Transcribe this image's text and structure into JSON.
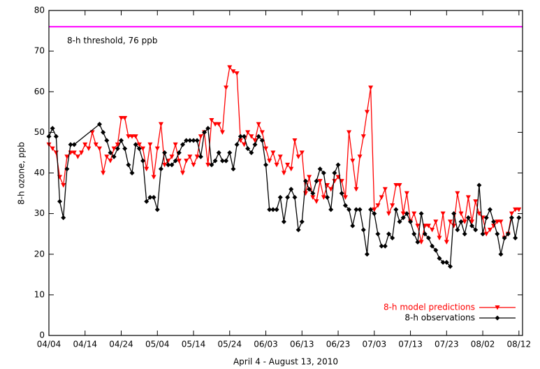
{
  "chart_data": {
    "type": "line",
    "xlabel": "April 4 - August 13, 2010",
    "ylabel": "8-h ozone,  ppb",
    "xlim": [
      0,
      131
    ],
    "ylim": [
      0,
      80
    ],
    "yticks": [
      0,
      10,
      20,
      30,
      40,
      50,
      60,
      70,
      80
    ],
    "xticks": [
      {
        "value": 0,
        "label": "04/04"
      },
      {
        "value": 10,
        "label": "04/14"
      },
      {
        "value": 20,
        "label": "04/24"
      },
      {
        "value": 30,
        "label": "05/04"
      },
      {
        "value": 40,
        "label": "05/14"
      },
      {
        "value": 50,
        "label": "05/24"
      },
      {
        "value": 60,
        "label": "06/03"
      },
      {
        "value": 70,
        "label": "06/13"
      },
      {
        "value": 80,
        "label": "06/23"
      },
      {
        "value": 90,
        "label": "07/03"
      },
      {
        "value": 100,
        "label": "07/13"
      },
      {
        "value": 110,
        "label": "07/23"
      },
      {
        "value": 120,
        "label": "08/02"
      },
      {
        "value": 130,
        "label": "08/12"
      }
    ],
    "legend": "lower right",
    "threshold": {
      "value": 76,
      "label": "8-h threshold, 76 ppb",
      "color": "#ff00ff"
    },
    "series": [
      {
        "name": "8-h model predictions",
        "color": "#ff0000",
        "marker": "triangle-down",
        "x": [
          0,
          1,
          2,
          3,
          4,
          5,
          6,
          7,
          8,
          9,
          10,
          11,
          12,
          13,
          14,
          15,
          16,
          17,
          18,
          19,
          20,
          21,
          22,
          23,
          24,
          25,
          26,
          27,
          28,
          29,
          30,
          31,
          32,
          33,
          34,
          35,
          36,
          37,
          38,
          39,
          40,
          41,
          42,
          43,
          44,
          45,
          46,
          47,
          48,
          49,
          50,
          51,
          52,
          53,
          54,
          55,
          56,
          57,
          58,
          59,
          60,
          61,
          62,
          63,
          64,
          65,
          66,
          67,
          68,
          69,
          70,
          71,
          72,
          73,
          74,
          75,
          76,
          77,
          78,
          79,
          80,
          81,
          82,
          83,
          84,
          85,
          86,
          87,
          88,
          89,
          90,
          91,
          92,
          93,
          94,
          95,
          96,
          97,
          98,
          99,
          100,
          101,
          102,
          103,
          104,
          105,
          106,
          107,
          108,
          109,
          110,
          111,
          112,
          113,
          114,
          115,
          116,
          117,
          118,
          119,
          120,
          121,
          122,
          123,
          124,
          125,
          126,
          127,
          128,
          129,
          130
        ],
        "values": [
          47,
          46,
          45,
          39,
          37,
          44,
          45,
          45,
          44,
          45,
          47,
          46,
          50,
          47,
          46,
          40,
          44,
          43,
          46,
          47,
          53.5,
          53.5,
          49,
          49,
          49,
          47,
          46,
          41,
          47,
          39,
          46,
          52,
          42,
          43,
          44,
          47,
          43,
          40,
          43,
          44,
          42,
          44,
          49,
          50,
          42,
          53,
          52,
          52,
          50,
          61,
          66,
          65,
          64.5,
          48,
          47,
          50,
          49,
          48,
          52,
          50,
          46,
          43,
          45,
          42,
          44,
          40,
          42,
          41,
          48,
          44,
          45,
          35,
          39,
          34,
          33,
          38,
          34,
          37,
          36,
          38,
          39,
          38,
          34,
          50,
          43,
          36,
          44,
          49,
          55,
          61,
          31,
          32,
          34,
          36,
          30,
          32,
          37,
          37,
          30,
          35,
          28,
          30,
          27,
          23,
          27,
          27,
          26,
          28,
          24,
          30,
          23,
          28,
          27,
          35,
          30,
          28,
          34,
          28,
          33,
          30,
          29,
          25,
          26,
          27,
          28,
          28,
          24,
          25,
          30,
          31,
          31
        ]
      },
      {
        "name": "8-h observations",
        "color": "#000000",
        "marker": "diamond",
        "x": [
          0,
          1,
          2,
          3,
          4,
          5,
          6,
          7,
          14,
          15,
          16,
          17,
          18,
          19,
          20,
          21,
          22,
          23,
          24,
          25,
          26,
          27,
          28,
          29,
          30,
          31,
          32,
          33,
          34,
          35,
          36,
          37,
          38,
          39,
          40,
          41,
          42,
          43,
          44,
          45,
          46,
          47,
          48,
          49,
          50,
          51,
          52,
          53,
          54,
          55,
          56,
          57,
          58,
          59,
          60,
          61,
          62,
          63,
          64,
          65,
          66,
          67,
          68,
          69,
          70,
          71,
          72,
          73,
          74,
          75,
          76,
          77,
          78,
          79,
          80,
          81,
          82,
          83,
          84,
          85,
          86,
          87,
          88,
          89,
          90,
          91,
          92,
          93,
          94,
          95,
          96,
          97,
          98,
          99,
          100,
          101,
          102,
          103,
          104,
          105,
          106,
          107,
          108,
          109,
          110,
          111,
          112,
          113,
          114,
          115,
          116,
          117,
          118,
          119,
          120,
          121,
          122,
          123,
          124,
          125,
          126,
          127,
          128,
          129,
          130
        ],
        "values": [
          49,
          51,
          49,
          33,
          29,
          41,
          47,
          47,
          52,
          50,
          48,
          45,
          44,
          46,
          48,
          46,
          42,
          40,
          47,
          46,
          43,
          33,
          34,
          34,
          31,
          41,
          45,
          42,
          42,
          43,
          45,
          47,
          48,
          48,
          48,
          48,
          44,
          50,
          51,
          42,
          43,
          45,
          43,
          43,
          45,
          41,
          47,
          49,
          49,
          46,
          45,
          47,
          49,
          48,
          42,
          31,
          31,
          31,
          34,
          28,
          34,
          36,
          34,
          26,
          28,
          38,
          36,
          35,
          38,
          41,
          40,
          34,
          31,
          40,
          42,
          35,
          32,
          31,
          27,
          31,
          31,
          26,
          20,
          31,
          30,
          25,
          22,
          22,
          25,
          24,
          31,
          28,
          29,
          30,
          28,
          25,
          23,
          30,
          25,
          24,
          22,
          21,
          19,
          18,
          18,
          17,
          30,
          26,
          28,
          25,
          29,
          27,
          26,
          37,
          25,
          29,
          31,
          28,
          25,
          20,
          24,
          25,
          29,
          24,
          29
        ]
      }
    ]
  }
}
